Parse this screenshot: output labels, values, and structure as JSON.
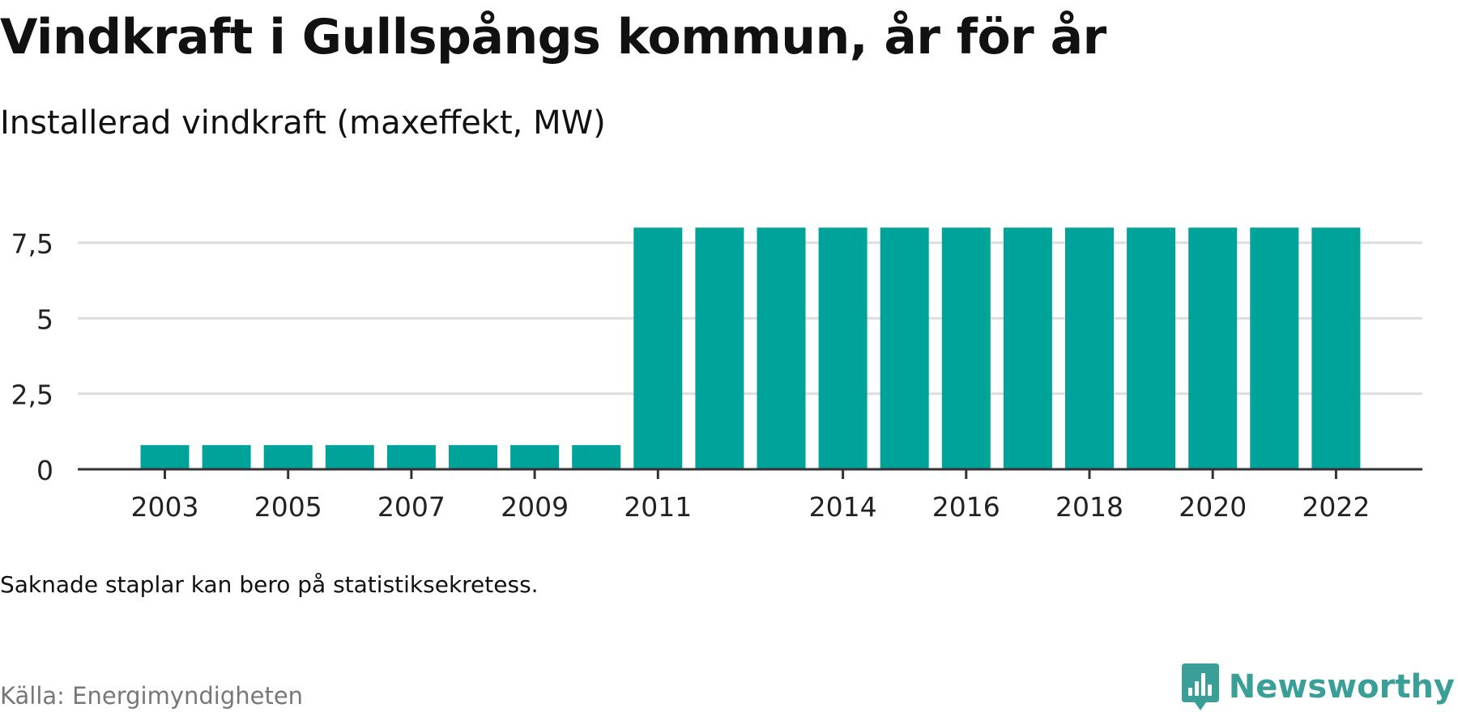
{
  "colors": {
    "bar": "#00a39a",
    "grid": "#dddddd",
    "axis": "#333333",
    "tick_text": "#222222",
    "brand": "#3a9f96",
    "source_text": "#777777"
  },
  "title": "Vindkraft i Gullspångs kommun, år för år",
  "subtitle": "Installerad vindkraft (maxeffekt, MW)",
  "note": "Saknade staplar kan bero på statistiksekretess.",
  "source": "Källa: Energimyndigheten",
  "brand": {
    "name": "Newsworthy",
    "icon": "newsworthy-logo-icon"
  },
  "chart_data": {
    "type": "bar",
    "categories": [
      "2003",
      "2004",
      "2005",
      "2006",
      "2007",
      "2008",
      "2009",
      "2010",
      "2011",
      "2012",
      "2013",
      "2014",
      "2015",
      "2016",
      "2017",
      "2018",
      "2019",
      "2020",
      "2021",
      "2022"
    ],
    "values": [
      0.8,
      0.8,
      0.8,
      0.8,
      0.8,
      0.8,
      0.8,
      0.8,
      8,
      8,
      8,
      8,
      8,
      8,
      8,
      8,
      8,
      8,
      8,
      8
    ],
    "x_tick_labels": [
      "2003",
      "2005",
      "2007",
      "2009",
      "2011",
      "2014",
      "2016",
      "2018",
      "2020",
      "2022"
    ],
    "y_ticks": [
      0,
      2.5,
      5,
      7.5
    ],
    "y_tick_labels": [
      "0",
      "2,5",
      "5",
      "7,5"
    ],
    "ylim": [
      0,
      8
    ],
    "xlabel": "",
    "ylabel": "",
    "grid": true,
    "legend": "none"
  }
}
